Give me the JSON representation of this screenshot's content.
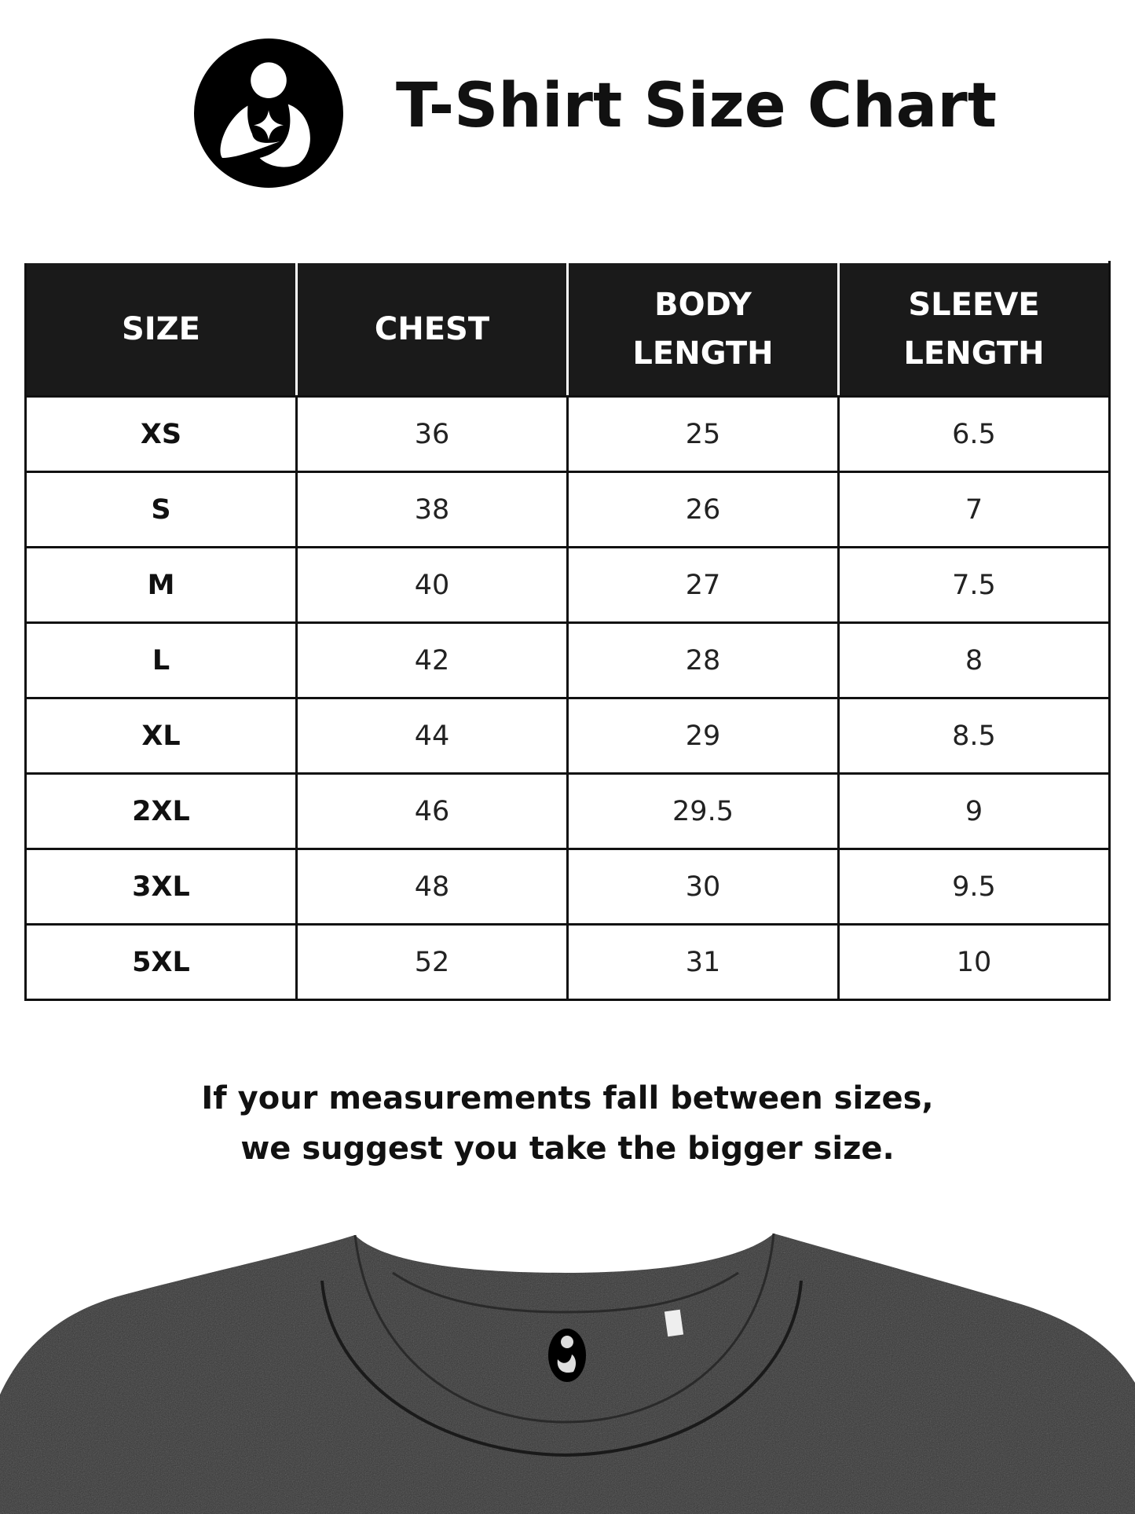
{
  "header": {
    "title": "T-Shirt Size Chart",
    "logo_icon": "mother-child-logo-icon"
  },
  "table": {
    "columns": [
      [
        "SIZE"
      ],
      [
        "CHEST"
      ],
      [
        "BODY",
        "LENGTH"
      ],
      [
        "SLEEVE",
        "LENGTH"
      ]
    ],
    "rows": [
      [
        "XS",
        "36",
        "25",
        "6.5"
      ],
      [
        "S",
        "38",
        "26",
        "7"
      ],
      [
        "M",
        "40",
        "27",
        "7.5"
      ],
      [
        "L",
        "42",
        "28",
        "8"
      ],
      [
        "XL",
        "44",
        "29",
        "8.5"
      ],
      [
        "2XL",
        "46",
        "29.5",
        "9"
      ],
      [
        "3XL",
        "48",
        "30",
        "9.5"
      ],
      [
        "5XL",
        "52",
        "31",
        "10"
      ]
    ]
  },
  "note": {
    "line1": "If your measurements fall between sizes,",
    "line2": "we suggest you take the bigger size."
  },
  "colors": {
    "header_bg": "#1a1a1a",
    "shirt": "#3a3a3a"
  }
}
